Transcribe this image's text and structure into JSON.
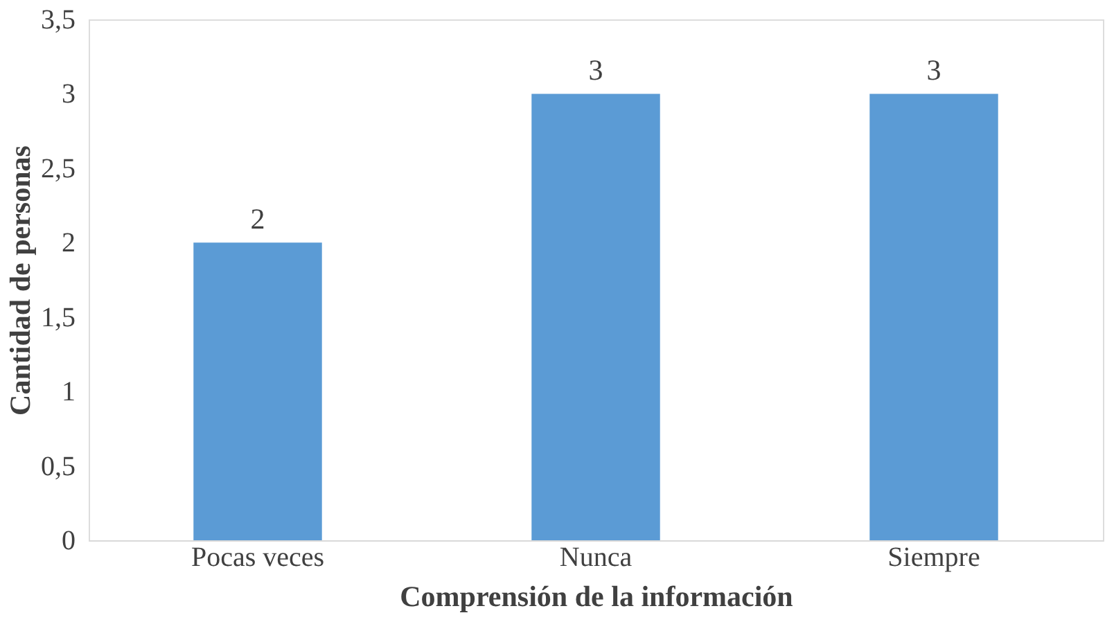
{
  "chart_data": {
    "type": "bar",
    "xlabel": "Comprensión de la información",
    "ylabel": "Cantidad de personas",
    "categories": [
      "Pocas veces",
      "Nunca",
      "Siempre"
    ],
    "values": [
      2,
      3,
      3
    ],
    "color": "#5b9bd5",
    "ylim": [
      0,
      3.5
    ],
    "yticks": [
      0,
      {
        "value": 0.5,
        "label": "0,5"
      },
      1,
      {
        "value": 1.5,
        "label": "1,5"
      },
      2,
      {
        "value": 2.5,
        "label": "2,5"
      },
      3,
      {
        "value": 3.5,
        "label": "3,5"
      }
    ],
    "data_labels": true,
    "grid": false
  }
}
